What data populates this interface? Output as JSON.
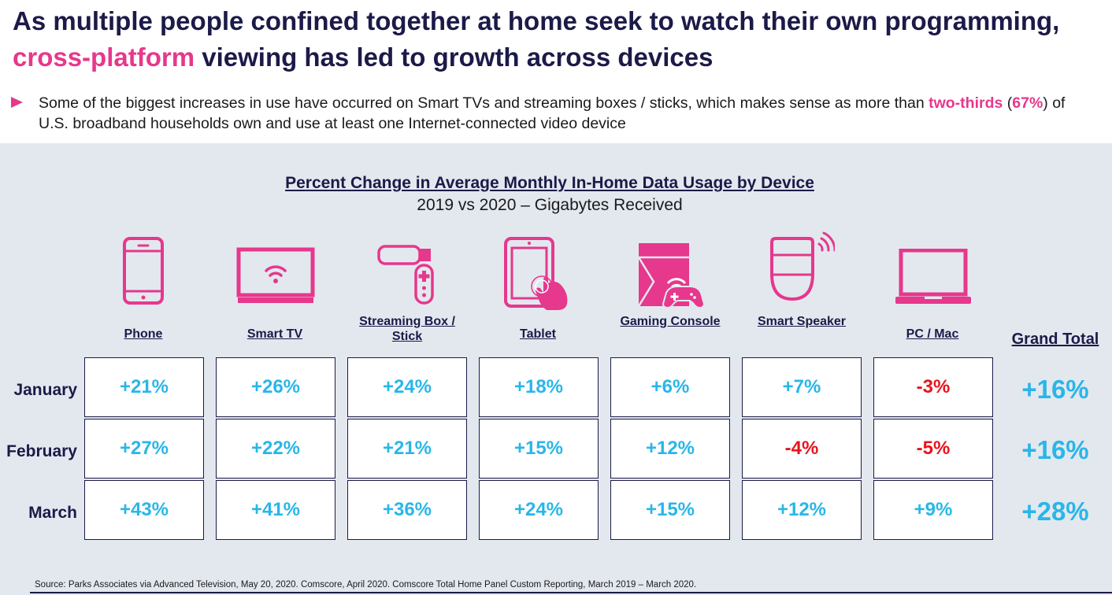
{
  "slide": {
    "title_part1": "As multiple people confined together at home seek to watch their own programming, ",
    "title_highlight": "cross-platform",
    "title_part2": " viewing has led to growth across devices",
    "bullet_part1": "Some of the biggest increases in use have occurred on Smart TVs and streaming boxes / sticks, which makes sense as more than ",
    "bullet_highlight1": "two-thirds",
    "bullet_part2": " (",
    "bullet_highlight2": "67%",
    "bullet_part3": ") of U.S. broadband households own and use at least one Internet-connected video device",
    "source": "Source: Parks Associates via Advanced Television, May 20, 2020. Comscore, April 2020. Comscore Total Home Panel Custom Reporting, March 2019 – March 2020."
  },
  "colors": {
    "accent_pink": "#e6388c",
    "positive": "#29b6e8",
    "negative": "#e8141e",
    "navy": "#1b1a48",
    "panel": "#e3e8ef"
  },
  "chart_data": {
    "type": "table",
    "title": "Percent Change in Average Monthly In-Home Data Usage by Device",
    "subtitle": "2019 vs 2020 – Gigabytes Received",
    "columns": [
      {
        "key": "phone",
        "label": "Phone",
        "icon": "phone-icon"
      },
      {
        "key": "smart_tv",
        "label": "Smart TV",
        "icon": "smart-tv-icon"
      },
      {
        "key": "streaming",
        "label": "Streaming Box / Stick",
        "icon": "streaming-stick-icon"
      },
      {
        "key": "tablet",
        "label": "Tablet",
        "icon": "tablet-icon"
      },
      {
        "key": "gaming",
        "label": "Gaming Console",
        "icon": "gaming-console-icon"
      },
      {
        "key": "speaker",
        "label": "Smart Speaker",
        "icon": "smart-speaker-icon"
      },
      {
        "key": "pc",
        "label": "PC / Mac",
        "icon": "laptop-icon"
      }
    ],
    "total_label": "Grand Total",
    "rows": [
      {
        "label": "January",
        "values": [
          21,
          26,
          24,
          18,
          6,
          7,
          -3
        ],
        "total": 16
      },
      {
        "label": "February",
        "values": [
          27,
          22,
          21,
          15,
          12,
          -4,
          -5
        ],
        "total": 16
      },
      {
        "label": "March",
        "values": [
          43,
          41,
          36,
          24,
          15,
          12,
          9
        ],
        "total": 28
      }
    ],
    "unit": "%"
  }
}
